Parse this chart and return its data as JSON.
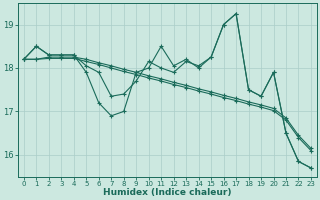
{
  "xlabel": "Humidex (Indice chaleur)",
  "bg_color": "#cce8e0",
  "grid_color": "#aacec8",
  "line_color": "#1a6b5a",
  "xlim": [
    -0.5,
    23.5
  ],
  "ylim": [
    15.5,
    19.5
  ],
  "yticks": [
    16,
    17,
    18,
    19
  ],
  "xticks": [
    0,
    1,
    2,
    3,
    4,
    5,
    6,
    7,
    8,
    9,
    10,
    11,
    12,
    13,
    14,
    15,
    16,
    17,
    18,
    19,
    20,
    21,
    22,
    23
  ],
  "lines": [
    {
      "x": [
        0,
        1,
        2,
        3,
        4,
        5,
        6,
        7,
        8,
        9,
        10,
        11,
        12,
        13,
        14,
        15,
        16,
        17,
        18,
        19,
        20,
        21,
        22,
        23
      ],
      "y": [
        18.2,
        18.5,
        18.3,
        18.3,
        18.3,
        17.9,
        17.2,
        16.9,
        17.0,
        17.9,
        18.0,
        18.5,
        18.05,
        18.2,
        18.0,
        18.25,
        19.0,
        19.25,
        17.5,
        17.35,
        17.9,
        16.5,
        15.85,
        15.7
      ]
    },
    {
      "x": [
        0,
        1,
        2,
        3,
        4,
        5,
        6,
        7,
        8,
        9,
        10,
        11,
        12,
        13,
        14,
        15,
        16,
        17,
        18,
        19,
        20,
        21,
        22,
        23
      ],
      "y": [
        18.2,
        18.5,
        18.3,
        18.3,
        18.3,
        18.05,
        17.9,
        17.35,
        17.4,
        17.7,
        18.15,
        18.0,
        17.9,
        18.15,
        18.05,
        18.25,
        19.0,
        19.25,
        17.5,
        17.35,
        17.9,
        16.5,
        15.85,
        15.7
      ]
    },
    {
      "x": [
        0,
        1,
        2,
        3,
        4,
        5,
        6,
        7,
        8,
        9,
        10,
        11,
        12,
        13,
        14,
        15,
        16,
        17,
        18,
        19,
        20,
        21,
        22,
        23
      ],
      "y": [
        18.2,
        18.2,
        18.22,
        18.22,
        18.22,
        18.15,
        18.08,
        18.0,
        17.92,
        17.85,
        17.77,
        17.7,
        17.62,
        17.55,
        17.47,
        17.4,
        17.32,
        17.25,
        17.17,
        17.1,
        17.02,
        16.8,
        16.4,
        16.1
      ]
    },
    {
      "x": [
        0,
        1,
        2,
        3,
        4,
        5,
        6,
        7,
        8,
        9,
        10,
        11,
        12,
        13,
        14,
        15,
        16,
        17,
        18,
        19,
        20,
        21,
        22,
        23
      ],
      "y": [
        18.2,
        18.2,
        18.25,
        18.25,
        18.25,
        18.2,
        18.12,
        18.05,
        17.97,
        17.9,
        17.82,
        17.75,
        17.67,
        17.6,
        17.52,
        17.45,
        17.37,
        17.3,
        17.22,
        17.15,
        17.07,
        16.85,
        16.45,
        16.15
      ]
    }
  ]
}
